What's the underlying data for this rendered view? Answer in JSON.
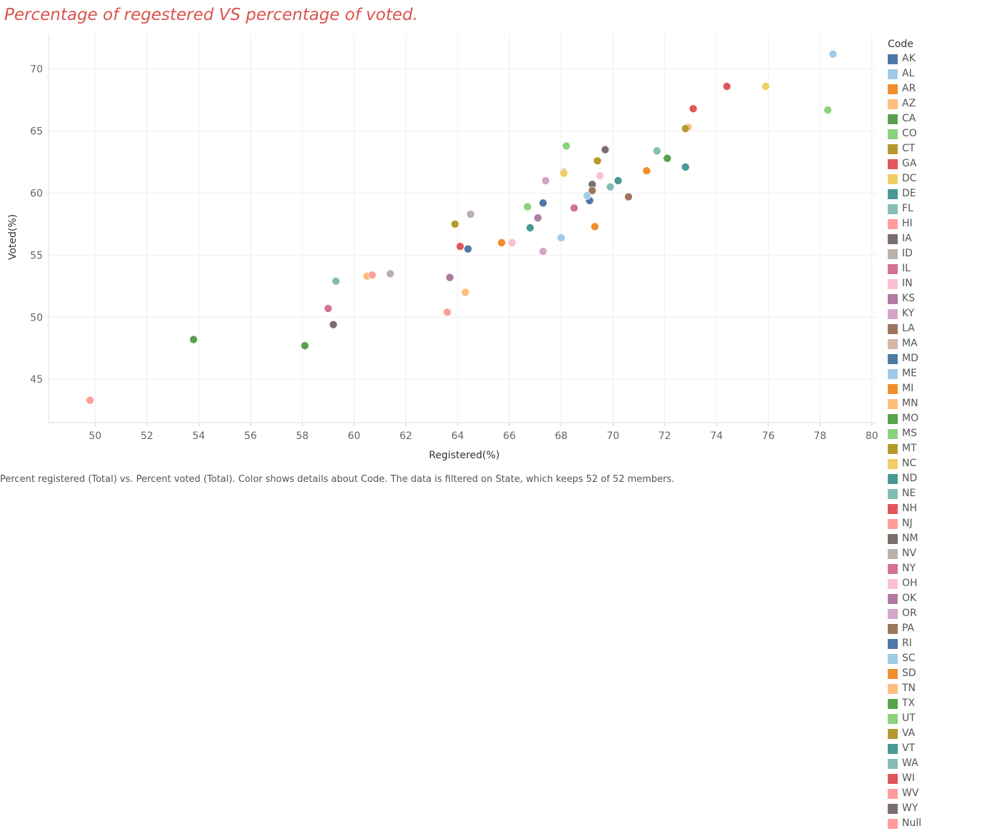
{
  "title": "Percentage of regestered VS percentage of voted.",
  "caption": "Percent registered (Total) vs. Percent voted (Total).  Color shows details about Code. The data is filtered on State, which keeps 52 of 52 members.",
  "legend": {
    "title": "Code",
    "items": [
      {
        "code": "AK",
        "color": "#4e79a7"
      },
      {
        "code": "AL",
        "color": "#a0cbe8"
      },
      {
        "code": "AR",
        "color": "#f28e2b"
      },
      {
        "code": "AZ",
        "color": "#ffbe7d"
      },
      {
        "code": "CA",
        "color": "#59a14f"
      },
      {
        "code": "CO",
        "color": "#8cd17d"
      },
      {
        "code": "CT",
        "color": "#b6992d"
      },
      {
        "code": "GA",
        "color": "#e15759"
      },
      {
        "code": "DC",
        "color": "#f1ce63"
      },
      {
        "code": "DE",
        "color": "#499894"
      },
      {
        "code": "FL",
        "color": "#86bcb6"
      },
      {
        "code": "HI",
        "color": "#ff9d9a"
      },
      {
        "code": "IA",
        "color": "#79706e"
      },
      {
        "code": "ID",
        "color": "#bab0ac"
      },
      {
        "code": "IL",
        "color": "#d37295"
      },
      {
        "code": "IN",
        "color": "#fabfd2"
      },
      {
        "code": "KS",
        "color": "#b07aa1"
      },
      {
        "code": "KY",
        "color": "#d4a6c8"
      },
      {
        "code": "LA",
        "color": "#9d7660"
      },
      {
        "code": "MA",
        "color": "#d7b5a6"
      },
      {
        "code": "MD",
        "color": "#4e79a7"
      },
      {
        "code": "ME",
        "color": "#a0cbe8"
      },
      {
        "code": "MI",
        "color": "#f28e2b"
      },
      {
        "code": "MN",
        "color": "#ffbe7d"
      },
      {
        "code": "MO",
        "color": "#59a14f"
      },
      {
        "code": "MS",
        "color": "#8cd17d"
      },
      {
        "code": "MT",
        "color": "#b6992d"
      },
      {
        "code": "NC",
        "color": "#f1ce63"
      },
      {
        "code": "ND",
        "color": "#499894"
      },
      {
        "code": "NE",
        "color": "#86bcb6"
      },
      {
        "code": "NH",
        "color": "#e15759"
      },
      {
        "code": "NJ",
        "color": "#ff9d9a"
      },
      {
        "code": "NM",
        "color": "#79706e"
      },
      {
        "code": "NV",
        "color": "#bab0ac"
      },
      {
        "code": "NY",
        "color": "#d37295"
      },
      {
        "code": "OH",
        "color": "#fabfd2"
      },
      {
        "code": "OK",
        "color": "#b07aa1"
      },
      {
        "code": "OR",
        "color": "#d4a6c8"
      },
      {
        "code": "PA",
        "color": "#9d7660"
      },
      {
        "code": "RI",
        "color": "#4e79a7"
      },
      {
        "code": "SC",
        "color": "#a0cbe8"
      },
      {
        "code": "SD",
        "color": "#f28e2b"
      },
      {
        "code": "TN",
        "color": "#ffbe7d"
      },
      {
        "code": "TX",
        "color": "#59a14f"
      },
      {
        "code": "UT",
        "color": "#8cd17d"
      },
      {
        "code": "VA",
        "color": "#b6992d"
      },
      {
        "code": "VT",
        "color": "#499894"
      },
      {
        "code": "WA",
        "color": "#86bcb6"
      },
      {
        "code": "WI",
        "color": "#e15759"
      },
      {
        "code": "WV",
        "color": "#ff9d9a"
      },
      {
        "code": "WY",
        "color": "#79706e"
      },
      {
        "code": "Null",
        "color": "#ff9d9a"
      }
    ]
  },
  "chart_data": {
    "type": "scatter",
    "title": "Percentage of regestered VS percentage of voted.",
    "xlabel": "Registered(%)",
    "ylabel": "Voted(%)",
    "xlim": [
      48.2,
      80.2
    ],
    "ylim": [
      41.5,
      72.8
    ],
    "x_ticks": [
      50,
      52,
      54,
      56,
      58,
      60,
      62,
      64,
      66,
      68,
      70,
      72,
      74,
      76,
      78,
      80
    ],
    "y_ticks": [
      45,
      50,
      55,
      60,
      65,
      70
    ],
    "grid": true,
    "legend_position": "right",
    "points": [
      {
        "x": 67.3,
        "y": 59.2,
        "code": "AK"
      },
      {
        "x": 68.0,
        "y": 56.4,
        "code": "AL"
      },
      {
        "x": 65.7,
        "y": 56.0,
        "code": "AR"
      },
      {
        "x": 64.3,
        "y": 52.0,
        "code": "AZ"
      },
      {
        "x": 58.1,
        "y": 47.7,
        "code": "CA"
      },
      {
        "x": 68.2,
        "y": 63.8,
        "code": "CO"
      },
      {
        "x": 69.4,
        "y": 62.6,
        "code": "CT"
      },
      {
        "x": 64.1,
        "y": 55.7,
        "code": "GA"
      },
      {
        "x": 75.9,
        "y": 68.6,
        "code": "DC"
      },
      {
        "x": 70.2,
        "y": 61.0,
        "code": "DE"
      },
      {
        "x": 59.3,
        "y": 52.9,
        "code": "FL"
      },
      {
        "x": 49.8,
        "y": 43.3,
        "code": "HI"
      },
      {
        "x": 69.7,
        "y": 63.5,
        "code": "IA"
      },
      {
        "x": 64.5,
        "y": 58.3,
        "code": "ID"
      },
      {
        "x": 68.5,
        "y": 58.8,
        "code": "IL"
      },
      {
        "x": 66.1,
        "y": 56.0,
        "code": "IN"
      },
      {
        "x": 67.1,
        "y": 58.0,
        "code": "KS"
      },
      {
        "x": 67.4,
        "y": 61.0,
        "code": "KY"
      },
      {
        "x": 70.6,
        "y": 59.7,
        "code": "LA"
      },
      {
        "x": 68.1,
        "y": 61.7,
        "code": "MA"
      },
      {
        "x": 64.4,
        "y": 55.5,
        "code": "MD"
      },
      {
        "x": 78.5,
        "y": 71.2,
        "code": "ME"
      },
      {
        "x": 71.3,
        "y": 61.8,
        "code": "MI"
      },
      {
        "x": 72.9,
        "y": 65.3,
        "code": "MN"
      },
      {
        "x": 72.1,
        "y": 62.8,
        "code": "MO"
      },
      {
        "x": 66.7,
        "y": 58.9,
        "code": "MS"
      },
      {
        "x": 63.9,
        "y": 57.5,
        "code": "MT"
      },
      {
        "x": 68.1,
        "y": 61.6,
        "code": "NC"
      },
      {
        "x": 72.8,
        "y": 62.1,
        "code": "ND"
      },
      {
        "x": 71.7,
        "y": 63.4,
        "code": "NE"
      },
      {
        "x": 73.1,
        "y": 66.8,
        "code": "NH"
      },
      {
        "x": 60.7,
        "y": 53.4,
        "code": "NJ"
      },
      {
        "x": 69.2,
        "y": 60.7,
        "code": "NM"
      },
      {
        "x": 61.4,
        "y": 53.5,
        "code": "NV"
      },
      {
        "x": 59.0,
        "y": 50.7,
        "code": "NY"
      },
      {
        "x": 69.5,
        "y": 61.4,
        "code": "OH"
      },
      {
        "x": 63.7,
        "y": 53.2,
        "code": "OK"
      },
      {
        "x": 67.3,
        "y": 55.3,
        "code": "OR"
      },
      {
        "x": 69.2,
        "y": 60.2,
        "code": "PA"
      },
      {
        "x": 69.1,
        "y": 59.4,
        "code": "RI"
      },
      {
        "x": 69.0,
        "y": 59.8,
        "code": "SC"
      },
      {
        "x": 69.3,
        "y": 57.3,
        "code": "SD"
      },
      {
        "x": 60.5,
        "y": 53.3,
        "code": "TN"
      },
      {
        "x": 53.8,
        "y": 48.2,
        "code": "TX"
      },
      {
        "x": 78.3,
        "y": 66.7,
        "code": "UT"
      },
      {
        "x": 72.8,
        "y": 65.2,
        "code": "VA"
      },
      {
        "x": 66.8,
        "y": 57.2,
        "code": "VT"
      },
      {
        "x": 69.9,
        "y": 60.5,
        "code": "WA"
      },
      {
        "x": 74.4,
        "y": 68.6,
        "code": "WI"
      },
      {
        "x": 63.6,
        "y": 50.4,
        "code": "WV"
      },
      {
        "x": 59.2,
        "y": 49.4,
        "code": "WY"
      },
      {
        "x": 60.7,
        "y": 53.4,
        "code": "Null"
      }
    ]
  }
}
